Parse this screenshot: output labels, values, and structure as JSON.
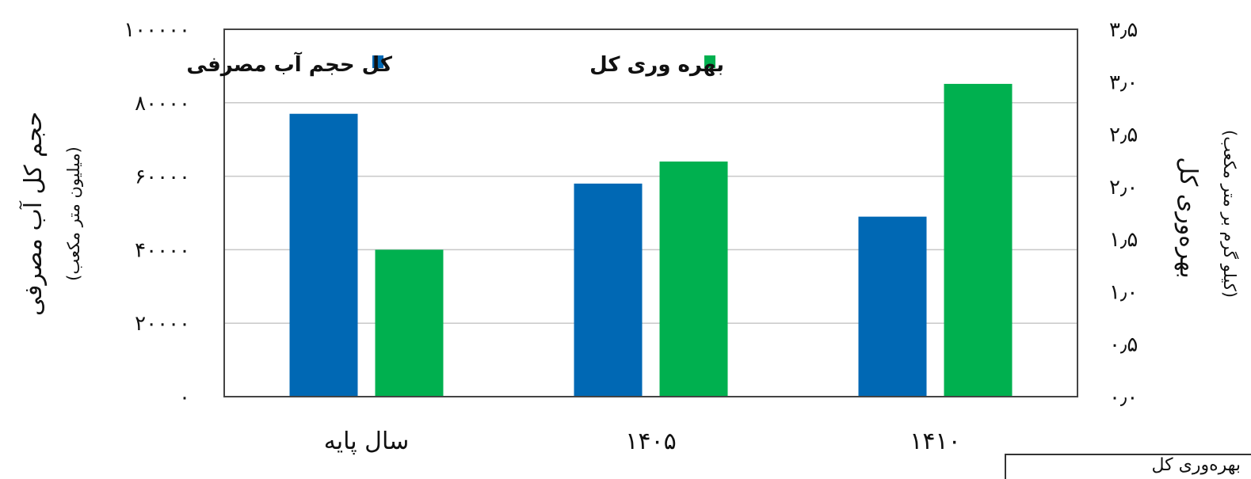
{
  "chart_data": {
    "type": "bar",
    "categories": [
      "سال پایه",
      "۱۴۰۵",
      "۱۴۱۰"
    ],
    "series": [
      {
        "name": "کل حجم آب مصرفی",
        "axis": "left",
        "color": "#0068b4",
        "values": [
          77000,
          58000,
          49000
        ]
      },
      {
        "name": "بهره وری کل",
        "axis": "right",
        "color": "#00b04f",
        "values": [
          1.4,
          2.24,
          2.98
        ]
      }
    ],
    "y_left": {
      "label": "حجم کل آب مصرفی",
      "unit": "(میلیون متر مکعب)",
      "ylim": [
        0,
        100000
      ],
      "tick_values": [
        0,
        20000,
        40000,
        60000,
        80000,
        100000
      ],
      "tick_labels": [
        "۰",
        "۲۰۰۰۰",
        "۴۰۰۰۰",
        "۶۰۰۰۰",
        "۸۰۰۰۰",
        "۱۰۰۰۰۰"
      ]
    },
    "y_right": {
      "label": "بهره‌وری کل",
      "unit": "(کیلو گرم بر متر مکعب)",
      "ylim": [
        0,
        3.5
      ],
      "tick_values": [
        0,
        0.5,
        1,
        1.5,
        2,
        2.5,
        3,
        3.5
      ],
      "tick_labels": [
        "۰٫۰",
        "۰٫۵",
        "۱٫۰",
        "۱٫۵",
        "۲٫۰",
        "۲٫۵",
        "۳٫۰",
        "۳٫۵"
      ]
    },
    "grid": true,
    "legend_position": "top"
  },
  "corner_label": "بهره‌وری کل"
}
